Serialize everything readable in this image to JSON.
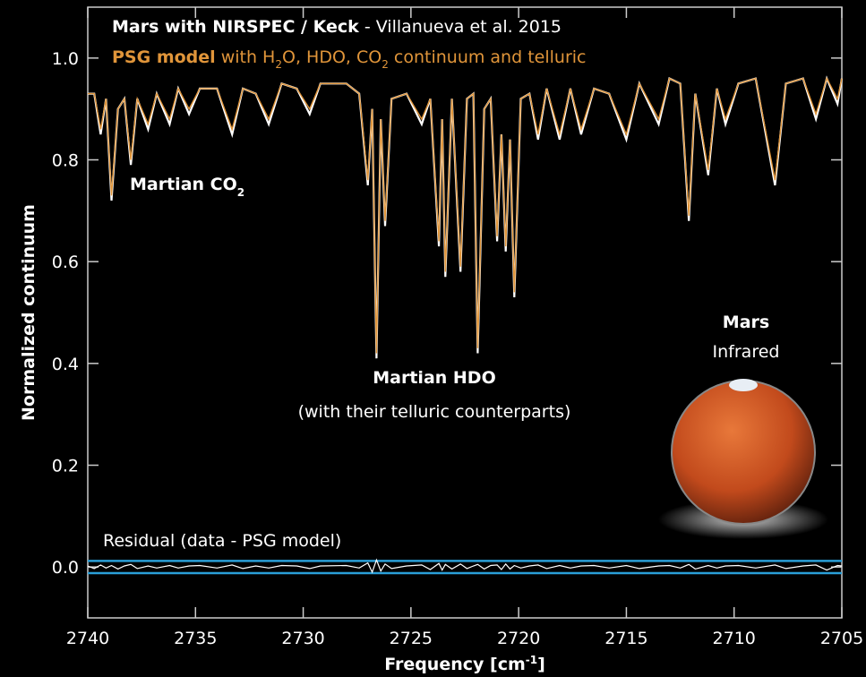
{
  "chart_data": {
    "type": "line",
    "title_parts": [
      "Mars with NIRSPEC / Keck",
      " - Villanueva et al. 2015"
    ],
    "subtitle_parts": [
      "PSG model",
      " with H",
      "2",
      "O, HDO, CO",
      "2",
      " continuum and telluric"
    ],
    "annotations": {
      "co2": [
        "Martian CO",
        "2"
      ],
      "hdo": "Martian HDO",
      "hdo_note": "(with their telluric counterparts)",
      "mars": "Mars",
      "infrared": "Infrared",
      "residual": "Residual (data - PSG model)"
    },
    "ylabel": "Normalized continuum",
    "xlabel_parts": [
      "Frequency [cm",
      "-1",
      "]"
    ],
    "x": [
      2740,
      2739.7,
      2739.4,
      2739.15,
      2738.9,
      2738.6,
      2738.3,
      2738.0,
      2737.7,
      2737.2,
      2736.8,
      2736.2,
      2735.8,
      2735.3,
      2734.8,
      2734.0,
      2733.3,
      2732.8,
      2732.2,
      2731.6,
      2731.0,
      2730.3,
      2729.7,
      2729.2,
      2728.0,
      2727.4,
      2727.0,
      2726.8,
      2726.6,
      2726.4,
      2726.2,
      2725.9,
      2725.2,
      2724.5,
      2724.1,
      2723.7,
      2723.55,
      2723.4,
      2723.1,
      2722.7,
      2722.4,
      2722.1,
      2721.9,
      2721.6,
      2721.3,
      2721.0,
      2720.8,
      2720.6,
      2720.4,
      2720.2,
      2719.9,
      2719.5,
      2719.1,
      2718.7,
      2718.1,
      2717.6,
      2717.1,
      2716.5,
      2715.8,
      2715.0,
      2714.4,
      2713.5,
      2713.0,
      2712.5,
      2712.1,
      2711.8,
      2711.2,
      2710.8,
      2710.4,
      2709.8,
      2709.0,
      2708.1,
      2707.6,
      2706.8,
      2706.2,
      2705.7,
      2705.2,
      2705.0
    ],
    "series": [
      {
        "color": "#ffffff",
        "values": [
          0.93,
          0.93,
          0.85,
          0.92,
          0.72,
          0.9,
          0.92,
          0.79,
          0.92,
          0.86,
          0.93,
          0.87,
          0.94,
          0.89,
          0.94,
          0.94,
          0.85,
          0.94,
          0.93,
          0.87,
          0.95,
          0.94,
          0.89,
          0.95,
          0.95,
          0.93,
          0.75,
          0.9,
          0.41,
          0.88,
          0.67,
          0.92,
          0.93,
          0.87,
          0.92,
          0.63,
          0.88,
          0.57,
          0.92,
          0.58,
          0.92,
          0.93,
          0.42,
          0.9,
          0.92,
          0.64,
          0.85,
          0.62,
          0.84,
          0.53,
          0.92,
          0.93,
          0.84,
          0.94,
          0.84,
          0.94,
          0.85,
          0.94,
          0.93,
          0.84,
          0.95,
          0.87,
          0.96,
          0.95,
          0.68,
          0.93,
          0.77,
          0.94,
          0.87,
          0.95,
          0.96,
          0.75,
          0.95,
          0.96,
          0.88,
          0.96,
          0.91,
          0.96
        ]
      },
      {
        "color": "#e0953a",
        "values": [
          0.93,
          0.93,
          0.86,
          0.92,
          0.73,
          0.9,
          0.92,
          0.8,
          0.92,
          0.87,
          0.93,
          0.88,
          0.94,
          0.9,
          0.94,
          0.94,
          0.86,
          0.94,
          0.93,
          0.88,
          0.95,
          0.94,
          0.9,
          0.95,
          0.95,
          0.93,
          0.76,
          0.9,
          0.42,
          0.88,
          0.68,
          0.92,
          0.93,
          0.88,
          0.92,
          0.64,
          0.88,
          0.58,
          0.92,
          0.59,
          0.92,
          0.93,
          0.43,
          0.9,
          0.92,
          0.65,
          0.85,
          0.63,
          0.84,
          0.54,
          0.92,
          0.93,
          0.85,
          0.94,
          0.85,
          0.94,
          0.86,
          0.94,
          0.93,
          0.85,
          0.95,
          0.88,
          0.96,
          0.95,
          0.69,
          0.93,
          0.78,
          0.94,
          0.88,
          0.95,
          0.96,
          0.76,
          0.95,
          0.96,
          0.89,
          0.96,
          0.92,
          0.96
        ]
      }
    ],
    "residual": {
      "color": "#ffffff",
      "values": [
        0.002,
        -0.003,
        0.004,
        -0.002,
        0.003,
        -0.004,
        0.002,
        0.005,
        -0.003,
        0.002,
        -0.002,
        0.003,
        -0.002,
        0.002,
        0.003,
        -0.002,
        0.004,
        -0.003,
        0.002,
        -0.002,
        0.003,
        0.002,
        -0.003,
        0.002,
        0.003,
        -0.002,
        0.008,
        -0.01,
        0.014,
        -0.008,
        0.006,
        -0.003,
        0.002,
        0.004,
        -0.005,
        0.007,
        -0.006,
        0.005,
        -0.004,
        0.006,
        -0.003,
        0.002,
        0.005,
        -0.004,
        0.003,
        0.004,
        -0.005,
        0.006,
        -0.004,
        0.003,
        -0.002,
        0.002,
        0.004,
        -0.003,
        0.003,
        -0.002,
        0.002,
        0.003,
        -0.002,
        0.003,
        -0.003,
        0.002,
        0.003,
        -0.002,
        0.005,
        -0.004,
        0.003,
        -0.002,
        0.002,
        0.003,
        -0.002,
        0.004,
        -0.003,
        0.002,
        0.004,
        -0.006,
        0.003,
        0.002
      ]
    },
    "residual_band": {
      "color": "#2a9fd8",
      "values": [
        -0.012,
        0.012
      ]
    },
    "xlim": [
      2740,
      2705
    ],
    "ylim": [
      -0.1,
      1.1
    ],
    "xticks": [
      2740,
      2735,
      2730,
      2725,
      2720,
      2715,
      2710,
      2705
    ],
    "yticks": [
      {
        "value": 0,
        "label": "0.0"
      },
      0.2,
      0.4,
      0.6,
      0.8,
      {
        "value": 1,
        "label": "1.0"
      }
    ]
  }
}
